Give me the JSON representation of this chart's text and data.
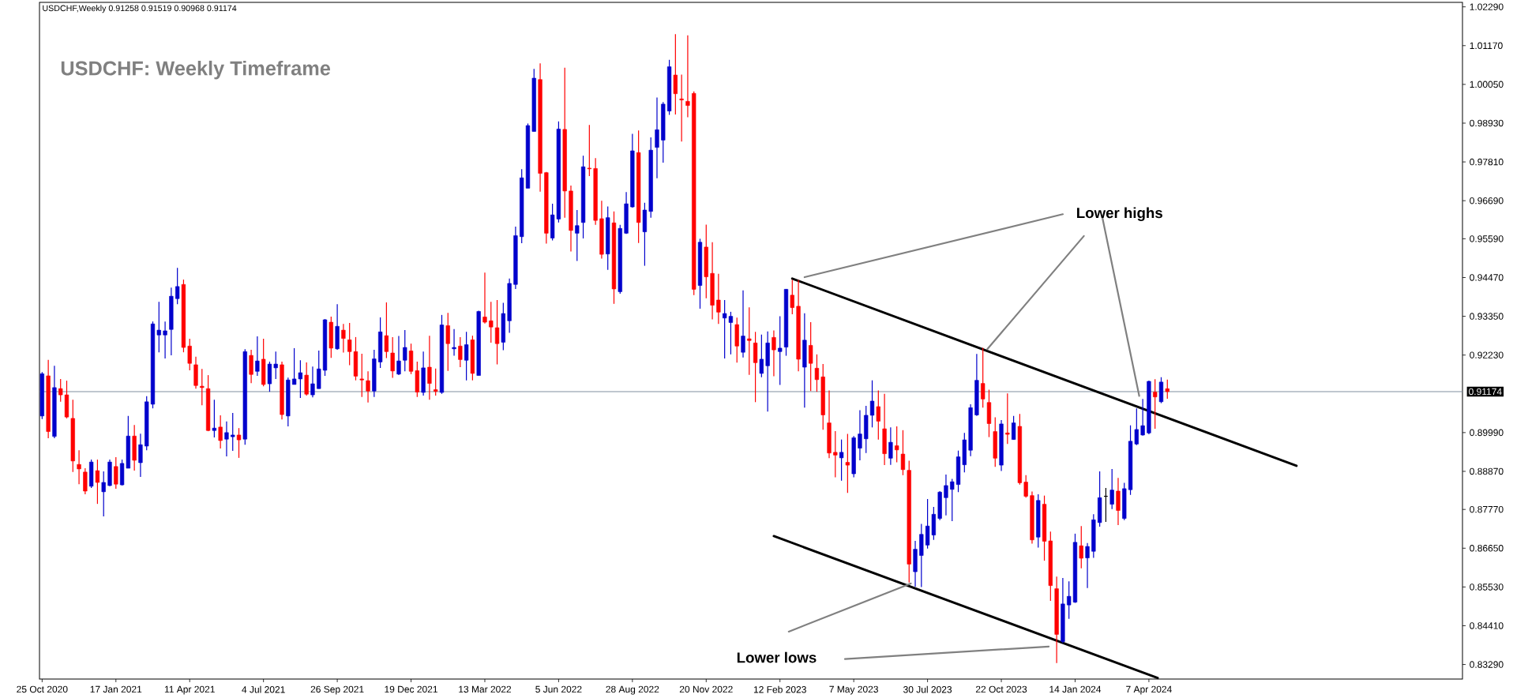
{
  "chart_data": {
    "type": "candlestick",
    "title": "USDCHF: Weekly Timeframe",
    "annotations": [
      "USDCHF,Weekly 0.91258 0.91519 0.90968 0.91174",
      "Lower highs",
      "Lower lows"
    ],
    "x": [
      "2020-10-25",
      "2020-11-01",
      "2020-11-08",
      "2020-11-15",
      "2020-11-22",
      "2020-11-29",
      "2020-12-06",
      "2020-12-13",
      "2020-12-20",
      "2020-12-27",
      "2021-01-03",
      "2021-01-10",
      "2021-01-17",
      "2021-01-24",
      "2021-01-31",
      "2021-02-07",
      "2021-02-14",
      "2021-02-21",
      "2021-02-28",
      "2021-03-07",
      "2021-03-14",
      "2021-03-21",
      "2021-03-28",
      "2021-04-04",
      "2021-04-11",
      "2021-04-18",
      "2021-04-25",
      "2021-05-02",
      "2021-05-09",
      "2021-05-16",
      "2021-05-23",
      "2021-05-30",
      "2021-06-06",
      "2021-06-13",
      "2021-06-20",
      "2021-06-27",
      "2021-07-04",
      "2021-07-11",
      "2021-07-18",
      "2021-07-25",
      "2021-08-01",
      "2021-08-08",
      "2021-08-15",
      "2021-08-22",
      "2021-08-29",
      "2021-09-05",
      "2021-09-12",
      "2021-09-19",
      "2021-09-26",
      "2021-10-03",
      "2021-10-10",
      "2021-10-17",
      "2021-10-24",
      "2021-10-31",
      "2021-11-07",
      "2021-11-14",
      "2021-11-21",
      "2021-11-28",
      "2021-12-05",
      "2021-12-12",
      "2021-12-19",
      "2021-12-26",
      "2022-01-02",
      "2022-01-09",
      "2022-01-16",
      "2022-01-23",
      "2022-01-30",
      "2022-02-06",
      "2022-02-13",
      "2022-02-20",
      "2022-02-27",
      "2022-03-06",
      "2022-03-13",
      "2022-03-20",
      "2022-03-27",
      "2022-04-03",
      "2022-04-10",
      "2022-04-17",
      "2022-04-24",
      "2022-05-01",
      "2022-05-08",
      "2022-05-15",
      "2022-05-22",
      "2022-05-29",
      "2022-06-05",
      "2022-06-12",
      "2022-06-19",
      "2022-06-26",
      "2022-07-03",
      "2022-07-10",
      "2022-07-17",
      "2022-07-24",
      "2022-07-31",
      "2022-08-07",
      "2022-08-14",
      "2022-08-21",
      "2022-08-28",
      "2022-09-04",
      "2022-09-11",
      "2022-09-18",
      "2022-09-25",
      "2022-10-02",
      "2022-10-09",
      "2022-10-16",
      "2022-10-23",
      "2022-10-30",
      "2022-11-06",
      "2022-11-13",
      "2022-11-20",
      "2022-11-27",
      "2022-12-04",
      "2022-12-11",
      "2022-12-18",
      "2022-12-25",
      "2023-01-01",
      "2023-01-08",
      "2023-01-15",
      "2023-01-22",
      "2023-01-29",
      "2023-02-05",
      "2023-02-12",
      "2023-02-19",
      "2023-02-26",
      "2023-03-05",
      "2023-03-12",
      "2023-03-19",
      "2023-03-26",
      "2023-04-02",
      "2023-04-09",
      "2023-04-16",
      "2023-04-23",
      "2023-04-30",
      "2023-05-07",
      "2023-05-14",
      "2023-05-21",
      "2023-05-28",
      "2023-06-04",
      "2023-06-11",
      "2023-06-18",
      "2023-06-25",
      "2023-07-02",
      "2023-07-09",
      "2023-07-16",
      "2023-07-23",
      "2023-07-30",
      "2023-08-06",
      "2023-08-13",
      "2023-08-20",
      "2023-08-27",
      "2023-09-03",
      "2023-09-10",
      "2023-09-17",
      "2023-09-24",
      "2023-10-01",
      "2023-10-08",
      "2023-10-15",
      "2023-10-22",
      "2023-10-29",
      "2023-11-05",
      "2023-11-12",
      "2023-11-19",
      "2023-11-26",
      "2023-12-03",
      "2023-12-10",
      "2023-12-17",
      "2023-12-24",
      "2023-12-31",
      "2024-01-07",
      "2024-01-14",
      "2024-01-21",
      "2024-01-28",
      "2024-02-04",
      "2024-02-11",
      "2024-02-18",
      "2024-02-25",
      "2024-03-03",
      "2024-03-10",
      "2024-03-17",
      "2024-03-24",
      "2024-03-31",
      "2024-04-07",
      "2024-04-14",
      "2024-04-21",
      "2024-04-28"
    ],
    "ohlc": [
      [
        0.9047,
        0.9174,
        0.9038,
        0.9169
      ],
      [
        0.9163,
        0.9209,
        0.8983,
        0.9002
      ],
      [
        0.8988,
        0.9192,
        0.8983,
        0.9129
      ],
      [
        0.9126,
        0.9154,
        0.9088,
        0.9108
      ],
      [
        0.9108,
        0.9149,
        0.904,
        0.9044
      ],
      [
        0.904,
        0.9094,
        0.8885,
        0.8917
      ],
      [
        0.8907,
        0.8948,
        0.885,
        0.8894
      ],
      [
        0.8885,
        0.8896,
        0.8821,
        0.883
      ],
      [
        0.8844,
        0.8921,
        0.8839,
        0.8914
      ],
      [
        0.8889,
        0.8921,
        0.8793,
        0.8855
      ],
      [
        0.8828,
        0.8887,
        0.8757,
        0.8855
      ],
      [
        0.8846,
        0.8921,
        0.8844,
        0.8914
      ],
      [
        0.8901,
        0.8928,
        0.8837,
        0.885
      ],
      [
        0.8848,
        0.8921,
        0.8846,
        0.891
      ],
      [
        0.8896,
        0.9047,
        0.8896,
        0.8989
      ],
      [
        0.8989,
        0.9021,
        0.8889,
        0.8919
      ],
      [
        0.8912,
        0.8996,
        0.8871,
        0.8964
      ],
      [
        0.896,
        0.9104,
        0.8948,
        0.9088
      ],
      [
        0.9081,
        0.932,
        0.9069,
        0.9313
      ],
      [
        0.9281,
        0.9377,
        0.9231,
        0.9295
      ],
      [
        0.9281,
        0.932,
        0.9213,
        0.9293
      ],
      [
        0.9297,
        0.9418,
        0.9222,
        0.9393
      ],
      [
        0.9386,
        0.9475,
        0.937,
        0.9421
      ],
      [
        0.9427,
        0.9441,
        0.9231,
        0.9245
      ],
      [
        0.9249,
        0.927,
        0.9179,
        0.9199
      ],
      [
        0.9195,
        0.9218,
        0.9126,
        0.9135
      ],
      [
        0.9133,
        0.9183,
        0.9078,
        0.9129
      ],
      [
        0.9126,
        0.9165,
        0.9003,
        0.9005
      ],
      [
        0.9005,
        0.9094,
        0.8985,
        0.9012
      ],
      [
        0.9015,
        0.9049,
        0.8953,
        0.8976
      ],
      [
        0.898,
        0.9031,
        0.893,
        0.8999
      ],
      [
        0.8987,
        0.9056,
        0.8946,
        0.8992
      ],
      [
        0.8992,
        0.9012,
        0.8926,
        0.8978
      ],
      [
        0.898,
        0.924,
        0.8964,
        0.9233
      ],
      [
        0.9222,
        0.9238,
        0.9142,
        0.9167
      ],
      [
        0.9176,
        0.9277,
        0.9163,
        0.9206
      ],
      [
        0.9211,
        0.927,
        0.9133,
        0.9138
      ],
      [
        0.914,
        0.9204,
        0.9117,
        0.9197
      ],
      [
        0.9186,
        0.9233,
        0.9154,
        0.9197
      ],
      [
        0.9195,
        0.9204,
        0.9037,
        0.9051
      ],
      [
        0.9047,
        0.9158,
        0.9017,
        0.9151
      ],
      [
        0.9138,
        0.9243,
        0.9138,
        0.9154
      ],
      [
        0.9154,
        0.9208,
        0.9099,
        0.9172
      ],
      [
        0.9165,
        0.9202,
        0.9106,
        0.911
      ],
      [
        0.9108,
        0.919,
        0.9101,
        0.914
      ],
      [
        0.9126,
        0.9236,
        0.9126,
        0.9183
      ],
      [
        0.9179,
        0.9327,
        0.9163,
        0.9325
      ],
      [
        0.9318,
        0.9334,
        0.9215,
        0.9243
      ],
      [
        0.9241,
        0.937,
        0.9238,
        0.9306
      ],
      [
        0.9295,
        0.9313,
        0.923,
        0.9271
      ],
      [
        0.9267,
        0.9316,
        0.9194,
        0.9233
      ],
      [
        0.9233,
        0.9275,
        0.915,
        0.9162
      ],
      [
        0.9154,
        0.9227,
        0.9102,
        0.9151
      ],
      [
        0.9149,
        0.9176,
        0.9086,
        0.9119
      ],
      [
        0.9119,
        0.9238,
        0.9102,
        0.9212
      ],
      [
        0.9203,
        0.9332,
        0.9186,
        0.929
      ],
      [
        0.9279,
        0.9375,
        0.9214,
        0.9233
      ],
      [
        0.9229,
        0.9275,
        0.9157,
        0.9177
      ],
      [
        0.9168,
        0.9278,
        0.9165,
        0.9206
      ],
      [
        0.9208,
        0.9295,
        0.9176,
        0.9245
      ],
      [
        0.9235,
        0.9256,
        0.9168,
        0.9176
      ],
      [
        0.9178,
        0.9204,
        0.9102,
        0.9116
      ],
      [
        0.9115,
        0.9233,
        0.9106,
        0.9186
      ],
      [
        0.9188,
        0.9279,
        0.9094,
        0.9141
      ],
      [
        0.9123,
        0.9184,
        0.9106,
        0.9118
      ],
      [
        0.9115,
        0.9339,
        0.9111,
        0.931
      ],
      [
        0.9308,
        0.9345,
        0.9177,
        0.9256
      ],
      [
        0.9241,
        0.9298,
        0.9221,
        0.9245
      ],
      [
        0.9249,
        0.9275,
        0.9188,
        0.921
      ],
      [
        0.9208,
        0.929,
        0.915,
        0.9253
      ],
      [
        0.9267,
        0.9279,
        0.915,
        0.917
      ],
      [
        0.9164,
        0.9351,
        0.9164,
        0.9349
      ],
      [
        0.9333,
        0.9461,
        0.9314,
        0.9318
      ],
      [
        0.9322,
        0.9377,
        0.9259,
        0.9304
      ],
      [
        0.9302,
        0.9382,
        0.9196,
        0.9256
      ],
      [
        0.926,
        0.9374,
        0.9237,
        0.9343
      ],
      [
        0.9322,
        0.9444,
        0.9287,
        0.943
      ],
      [
        0.9427,
        0.9594,
        0.9414,
        0.9568
      ],
      [
        0.9565,
        0.976,
        0.9546,
        0.9735
      ],
      [
        0.9705,
        0.9892,
        0.9705,
        0.9886
      ],
      [
        0.9869,
        1.005,
        0.9869,
        1.0023
      ],
      [
        1.0019,
        1.0066,
        0.9695,
        0.9748
      ],
      [
        0.975,
        0.9752,
        0.9545,
        0.9575
      ],
      [
        0.9561,
        0.966,
        0.9554,
        0.9628
      ],
      [
        0.9616,
        0.9898,
        0.9606,
        0.9876
      ],
      [
        0.9875,
        1.0053,
        0.962,
        0.9697
      ],
      [
        0.9697,
        0.9713,
        0.9522,
        0.9583
      ],
      [
        0.9575,
        0.9642,
        0.9495,
        0.9597
      ],
      [
        0.9606,
        0.9799,
        0.956,
        0.9767
      ],
      [
        0.9763,
        0.9888,
        0.974,
        0.9761
      ],
      [
        0.9762,
        0.9792,
        0.9599,
        0.9612
      ],
      [
        0.9617,
        0.9669,
        0.9502,
        0.9514
      ],
      [
        0.9515,
        0.9652,
        0.9469,
        0.962
      ],
      [
        0.9605,
        0.9638,
        0.9371,
        0.9414
      ],
      [
        0.9406,
        0.9599,
        0.94,
        0.9589
      ],
      [
        0.9575,
        0.9694,
        0.9573,
        0.966
      ],
      [
        0.9651,
        0.9862,
        0.9649,
        0.9813
      ],
      [
        0.9808,
        0.9872,
        0.9547,
        0.9606
      ],
      [
        0.9579,
        0.9663,
        0.9481,
        0.9642
      ],
      [
        0.9638,
        0.9852,
        0.962,
        0.9815
      ],
      [
        0.9823,
        0.9967,
        0.9734,
        0.9874
      ],
      [
        0.9844,
        0.9954,
        0.9779,
        0.9948
      ],
      [
        0.9928,
        1.0076,
        0.9917,
        1.0056
      ],
      [
        1.0032,
        1.015,
        0.9918,
        0.9978
      ],
      [
        0.9963,
        1.0033,
        0.984,
        0.996
      ],
      [
        0.9956,
        1.0147,
        0.991,
        0.9944
      ],
      [
        0.9979,
        0.9985,
        0.9396,
        0.9413
      ],
      [
        0.9424,
        0.9559,
        0.9357,
        0.9549
      ],
      [
        0.9535,
        0.96,
        0.9387,
        0.9449
      ],
      [
        0.9459,
        0.9549,
        0.9326,
        0.9367
      ],
      [
        0.9382,
        0.9458,
        0.9313,
        0.9347
      ],
      [
        0.933,
        0.9382,
        0.9213,
        0.9343
      ],
      [
        0.9317,
        0.9348,
        0.9225,
        0.9335
      ],
      [
        0.9311,
        0.9331,
        0.9201,
        0.9249
      ],
      [
        0.9231,
        0.941,
        0.9216,
        0.9278
      ],
      [
        0.927,
        0.9361,
        0.9166,
        0.9265
      ],
      [
        0.9258,
        0.929,
        0.9087,
        0.9201
      ],
      [
        0.917,
        0.9282,
        0.9159,
        0.9211
      ],
      [
        0.9192,
        0.9291,
        0.906,
        0.9258
      ],
      [
        0.9274,
        0.9294,
        0.9162,
        0.9238
      ],
      [
        0.9233,
        0.9335,
        0.9137,
        0.9243
      ],
      [
        0.9246,
        0.9414,
        0.9221,
        0.9413
      ],
      [
        0.9396,
        0.944,
        0.9341,
        0.936
      ],
      [
        0.9364,
        0.944,
        0.9176,
        0.9211
      ],
      [
        0.9188,
        0.9344,
        0.9071,
        0.9266
      ],
      [
        0.9251,
        0.9318,
        0.9119,
        0.9199
      ],
      [
        0.9185,
        0.9225,
        0.9117,
        0.9152
      ],
      [
        0.916,
        0.9197,
        0.9007,
        0.905
      ],
      [
        0.9027,
        0.9121,
        0.8925,
        0.894
      ],
      [
        0.8942,
        0.9003,
        0.887,
        0.8934
      ],
      [
        0.8926,
        0.8979,
        0.886,
        0.8942
      ],
      [
        0.8913,
        0.8995,
        0.8825,
        0.8905
      ],
      [
        0.888,
        0.8989,
        0.887,
        0.8984
      ],
      [
        0.8954,
        0.9064,
        0.8919,
        0.8995
      ],
      [
        0.8981,
        0.9076,
        0.894,
        0.9049
      ],
      [
        0.9049,
        0.915,
        0.9014,
        0.909
      ],
      [
        0.9074,
        0.9121,
        0.8979,
        0.9032
      ],
      [
        0.901,
        0.9111,
        0.8905,
        0.8938
      ],
      [
        0.8925,
        0.9014,
        0.8906,
        0.8971
      ],
      [
        0.8961,
        0.9017,
        0.8913,
        0.8949
      ],
      [
        0.8937,
        0.9006,
        0.8876,
        0.8892
      ],
      [
        0.889,
        0.8918,
        0.8566,
        0.8619
      ],
      [
        0.8597,
        0.8686,
        0.8554,
        0.8662
      ],
      [
        0.8644,
        0.8735,
        0.8553,
        0.8705
      ],
      [
        0.8674,
        0.8807,
        0.8664,
        0.8729
      ],
      [
        0.8703,
        0.8784,
        0.8689,
        0.8763
      ],
      [
        0.8751,
        0.883,
        0.8746,
        0.8827
      ],
      [
        0.8811,
        0.8878,
        0.876,
        0.8846
      ],
      [
        0.8835,
        0.8865,
        0.8743,
        0.8857
      ],
      [
        0.8849,
        0.8947,
        0.8827,
        0.8929
      ],
      [
        0.8906,
        0.8998,
        0.8884,
        0.8978
      ],
      [
        0.8948,
        0.9081,
        0.8931,
        0.9071
      ],
      [
        0.905,
        0.9226,
        0.9047,
        0.915
      ],
      [
        0.9141,
        0.9244,
        0.9071,
        0.9096
      ],
      [
        0.9086,
        0.9123,
        0.8986,
        0.9025
      ],
      [
        0.9002,
        0.9043,
        0.89,
        0.8925
      ],
      [
        0.8905,
        0.9035,
        0.8888,
        0.9024
      ],
      [
        0.8998,
        0.9112,
        0.8966,
        0.8994
      ],
      [
        0.8979,
        0.9047,
        0.8978,
        0.9027
      ],
      [
        0.9017,
        0.9053,
        0.8849,
        0.8854
      ],
      [
        0.8856,
        0.8876,
        0.8811,
        0.8815
      ],
      [
        0.8817,
        0.8829,
        0.8678,
        0.8689
      ],
      [
        0.8697,
        0.8821,
        0.8667,
        0.8803
      ],
      [
        0.8792,
        0.8817,
        0.8629,
        0.8685
      ],
      [
        0.8686,
        0.8713,
        0.8513,
        0.8557
      ],
      [
        0.8548,
        0.8583,
        0.8333,
        0.8416
      ],
      [
        0.8395,
        0.8579,
        0.8391,
        0.8504
      ],
      [
        0.8501,
        0.8569,
        0.8461,
        0.8526
      ],
      [
        0.8509,
        0.8707,
        0.8507,
        0.8682
      ],
      [
        0.8672,
        0.8729,
        0.8607,
        0.8636
      ],
      [
        0.8637,
        0.868,
        0.855,
        0.867
      ],
      [
        0.8656,
        0.8763,
        0.8637,
        0.8747
      ],
      [
        0.8739,
        0.8887,
        0.8727,
        0.8811
      ],
      [
        0.8815,
        0.8839,
        0.8741,
        0.8815
      ],
      [
        0.8792,
        0.8894,
        0.8778,
        0.8833
      ],
      [
        0.883,
        0.8868,
        0.8732,
        0.8774
      ],
      [
        0.8751,
        0.8854,
        0.8746,
        0.8837
      ],
      [
        0.8834,
        0.902,
        0.8819,
        0.8974
      ],
      [
        0.8966,
        0.9069,
        0.8963,
        0.9008
      ],
      [
        0.8992,
        0.9096,
        0.899,
        0.9019
      ],
      [
        0.8998,
        0.9149,
        0.8994,
        0.9147
      ],
      [
        0.9116,
        0.9153,
        0.901,
        0.9102
      ],
      [
        0.9088,
        0.9159,
        0.9084,
        0.9145
      ],
      [
        0.91258,
        0.91519,
        0.90968,
        0.91174
      ]
    ],
    "colors": [
      "#0000cc",
      "#ff0000",
      "#0000cc",
      "#ff0000",
      "#ff0000",
      "#ff0000",
      "#ff0000",
      "#ff0000",
      "#0000cc",
      "#ff0000",
      "#0000cc",
      "#0000cc",
      "#ff0000",
      "#0000cc",
      "#0000cc",
      "#ff0000",
      "#0000cc",
      "#0000cc",
      "#0000cc",
      "#0000cc",
      "#0000cc",
      "#0000cc",
      "#0000cc",
      "#ff0000",
      "#ff0000",
      "#ff0000",
      "#ff0000",
      "#ff0000",
      "#0000cc",
      "#ff0000",
      "#0000cc",
      "#0000cc",
      "#ff0000",
      "#0000cc",
      "#ff0000",
      "#0000cc",
      "#ff0000",
      "#0000cc",
      "#0000cc",
      "#ff0000",
      "#0000cc",
      "#0000cc",
      "#0000cc",
      "#ff0000",
      "#0000cc",
      "#0000cc",
      "#0000cc",
      "#ff0000",
      "#0000cc",
      "#ff0000",
      "#ff0000",
      "#ff0000",
      "#ff0000",
      "#ff0000",
      "#0000cc",
      "#0000cc",
      "#ff0000",
      "#ff0000",
      "#0000cc",
      "#0000cc",
      "#ff0000",
      "#ff0000",
      "#0000cc",
      "#ff0000",
      "#ff0000",
      "#0000cc",
      "#ff0000",
      "#0000cc",
      "#ff0000",
      "#0000cc",
      "#ff0000",
      "#0000cc",
      "#ff0000",
      "#ff0000",
      "#ff0000",
      "#0000cc",
      "#0000cc",
      "#0000cc",
      "#0000cc",
      "#0000cc",
      "#0000cc",
      "#ff0000",
      "#ff0000",
      "#0000cc",
      "#0000cc",
      "#ff0000",
      "#ff0000",
      "#0000cc",
      "#0000cc",
      "#ff0000",
      "#ff0000",
      "#ff0000",
      "#0000cc",
      "#ff0000",
      "#0000cc",
      "#0000cc",
      "#0000cc",
      "#ff0000",
      "#0000cc",
      "#0000cc",
      "#0000cc",
      "#0000cc",
      "#0000cc",
      "#ff0000",
      "#ff0000",
      "#ff0000",
      "#ff0000",
      "#0000cc",
      "#ff0000",
      "#ff0000",
      "#ff0000",
      "#0000cc",
      "#0000cc",
      "#ff0000",
      "#0000cc",
      "#ff0000",
      "#ff0000",
      "#0000cc",
      "#0000cc",
      "#ff0000",
      "#0000cc",
      "#0000cc",
      "#ff0000",
      "#ff0000",
      "#0000cc",
      "#ff0000",
      "#ff0000",
      "#ff0000",
      "#ff0000",
      "#ff0000",
      "#0000cc",
      "#ff0000",
      "#0000cc",
      "#0000cc",
      "#0000cc",
      "#0000cc",
      "#ff0000",
      "#ff0000",
      "#0000cc",
      "#ff0000",
      "#ff0000",
      "#ff0000",
      "#0000cc",
      "#0000cc",
      "#0000cc",
      "#0000cc",
      "#0000cc",
      "#0000cc",
      "#0000cc",
      "#0000cc",
      "#0000cc",
      "#0000cc",
      "#0000cc",
      "#ff0000",
      "#ff0000",
      "#ff0000",
      "#0000cc",
      "#ff0000",
      "#0000cc",
      "#ff0000",
      "#ff0000",
      "#ff0000",
      "#0000cc",
      "#ff0000",
      "#ff0000",
      "#ff0000",
      "#0000cc",
      "#0000cc",
      "#0000cc",
      "#ff0000",
      "#0000cc",
      "#0000cc",
      "#0000cc",
      "#000000",
      "#0000cc",
      "#ff0000",
      "#0000cc",
      "#0000cc",
      "#0000cc",
      "#0000cc",
      "#0000cc",
      "#ff0000",
      "#0000cc",
      "#ff0000"
    ],
    "series": [
      {
        "type": "line",
        "color": "#000000",
        "x": [
          "2023-02-26",
          "2024-09-22"
        ],
        "values": [
          0.9444,
          0.8903
        ]
      },
      {
        "type": "line",
        "color": "#000000",
        "x": [
          "2023-02-05",
          "2024-04-17"
        ],
        "values": [
          0.87,
          0.829
        ]
      },
      {
        "type": "line",
        "color": "#808080",
        "x": [
          "2023-12-31",
          "2023-03-12"
        ],
        "values": [
          0.963,
          0.9448
        ]
      },
      {
        "type": "line",
        "color": "#808080",
        "x": [
          "2024-01-24",
          "2023-10-06"
        ],
        "values": [
          0.9567,
          0.924
        ]
      },
      {
        "type": "line",
        "color": "#808080",
        "x": [
          "2024-02-14",
          "2024-03-27"
        ],
        "values": [
          0.9621,
          0.9105
        ]
      },
      {
        "type": "line",
        "color": "#808080",
        "x": [
          "2023-02-22",
          "2023-07-11"
        ],
        "values": [
          0.8424,
          0.8563
        ]
      },
      {
        "type": "line",
        "color": "#808080",
        "x": [
          "2023-04-27",
          "2023-12-15"
        ],
        "values": [
          0.8345,
          0.8381
        ]
      }
    ],
    "xlim": [
      "2020-10-22",
      "2025-03-30"
    ],
    "xticks": [
      {
        "value": "2020-10-25",
        "label": "25 Oct 2020"
      },
      {
        "value": "2021-01-17",
        "label": "17 Jan 2021"
      },
      {
        "value": "2021-04-11",
        "label": "11 Apr 2021"
      },
      {
        "value": "2021-07-04",
        "label": "4 Jul 2021"
      },
      {
        "value": "2021-09-26",
        "label": "26 Sep 2021"
      },
      {
        "value": "2021-12-19",
        "label": "19 Dec 2021"
      },
      {
        "value": "2022-03-13",
        "label": "13 Mar 2022"
      },
      {
        "value": "2022-06-05",
        "label": "5 Jun 2022"
      },
      {
        "value": "2022-08-28",
        "label": "28 Aug 2022"
      },
      {
        "value": "2022-11-20",
        "label": "20 Nov 2022"
      },
      {
        "value": "2023-02-12",
        "label": "12 Feb 2023"
      },
      {
        "value": "2023-05-07",
        "label": "7 May 2023"
      },
      {
        "value": "2023-07-30",
        "label": "30 Jul 2023"
      },
      {
        "value": "2023-10-22",
        "label": "22 Oct 2023"
      },
      {
        "value": "2024-01-14",
        "label": "14 Jan 2024"
      },
      {
        "value": "2024-04-07",
        "label": "7 Apr 2024"
      }
    ],
    "ylim": [
      0.8287,
      1.0242
    ],
    "yticks": [
      {
        "value": 1.0229,
        "label": "1.02290"
      },
      {
        "value": 1.0117,
        "label": "1.01170"
      },
      {
        "value": 1.0005,
        "label": "1.00050"
      },
      {
        "value": 0.9893,
        "label": "0.98930"
      },
      {
        "value": 0.9781,
        "label": "0.97810"
      },
      {
        "value": 0.9669,
        "label": "0.96690"
      },
      {
        "value": 0.9559,
        "label": "0.95590"
      },
      {
        "value": 0.9447,
        "label": "0.94470"
      },
      {
        "value": 0.9335,
        "label": "0.93350"
      },
      {
        "value": 0.9223,
        "label": "0.92230"
      },
      {
        "value": 0.8999,
        "label": "0.89990"
      },
      {
        "value": 0.8887,
        "label": "0.88870"
      },
      {
        "value": 0.8777,
        "label": "0.87770"
      },
      {
        "value": 0.8665,
        "label": "0.86650"
      },
      {
        "value": 0.8553,
        "label": "0.85530"
      },
      {
        "value": 0.8441,
        "label": "0.84410"
      },
      {
        "value": 0.8329,
        "label": "0.83290"
      }
    ],
    "ref_lines": [
      {
        "axis": "y",
        "value": 0.91174,
        "label": "0.91174",
        "color": "#8090a0"
      }
    ]
  }
}
